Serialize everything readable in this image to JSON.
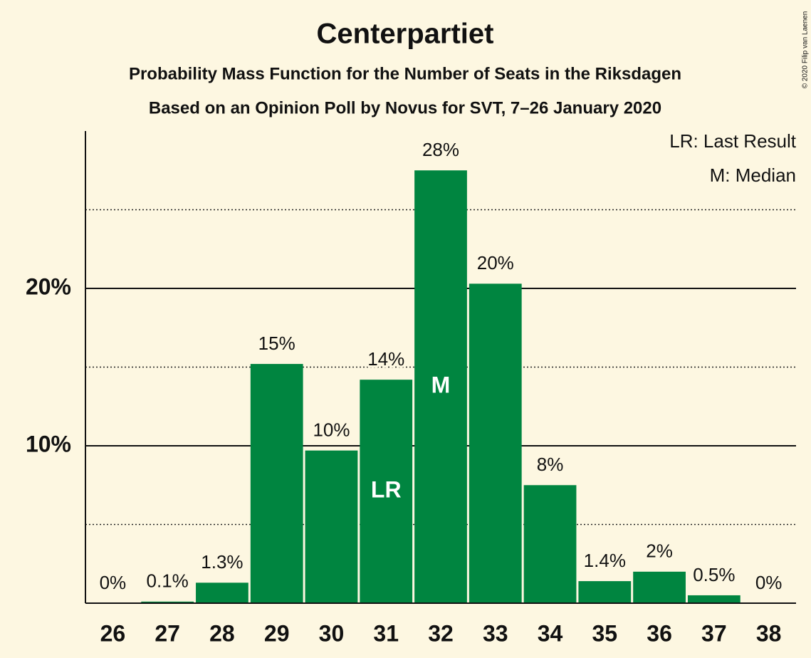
{
  "chart_data": {
    "type": "bar",
    "title": "Centerpartiet",
    "subtitle": "Probability Mass Function for the Number of Seats in the Riksdagen",
    "subtitle2": "Based on an Opinion Poll by Novus for SVT, 7–26 January 2020",
    "copyright": "© 2020 Filip van Laenen",
    "categories": [
      "26",
      "27",
      "28",
      "29",
      "30",
      "31",
      "32",
      "33",
      "34",
      "35",
      "36",
      "37",
      "38"
    ],
    "values": [
      0,
      0.1,
      1.3,
      15.2,
      9.7,
      14.2,
      27.5,
      20.3,
      7.5,
      1.4,
      2.0,
      0.5,
      0
    ],
    "value_labels": [
      "0%",
      "0.1%",
      "1.3%",
      "15%",
      "10%",
      "14%",
      "28%",
      "20%",
      "8%",
      "1.4%",
      "2%",
      "0.5%",
      "0%"
    ],
    "color": "#008540",
    "ylim": [
      0,
      30
    ],
    "yticks": [
      {
        "value": 10,
        "label": "10%"
      },
      {
        "value": 20,
        "label": "20%"
      }
    ],
    "minor_yticks": [
      5,
      15,
      25
    ],
    "grid": true,
    "markers": [
      {
        "label": "LR",
        "category": "31"
      },
      {
        "label": "M",
        "category": "32"
      }
    ],
    "legend": [
      "LR: Last Result",
      "M: Median"
    ],
    "legend_position": "top-right"
  }
}
